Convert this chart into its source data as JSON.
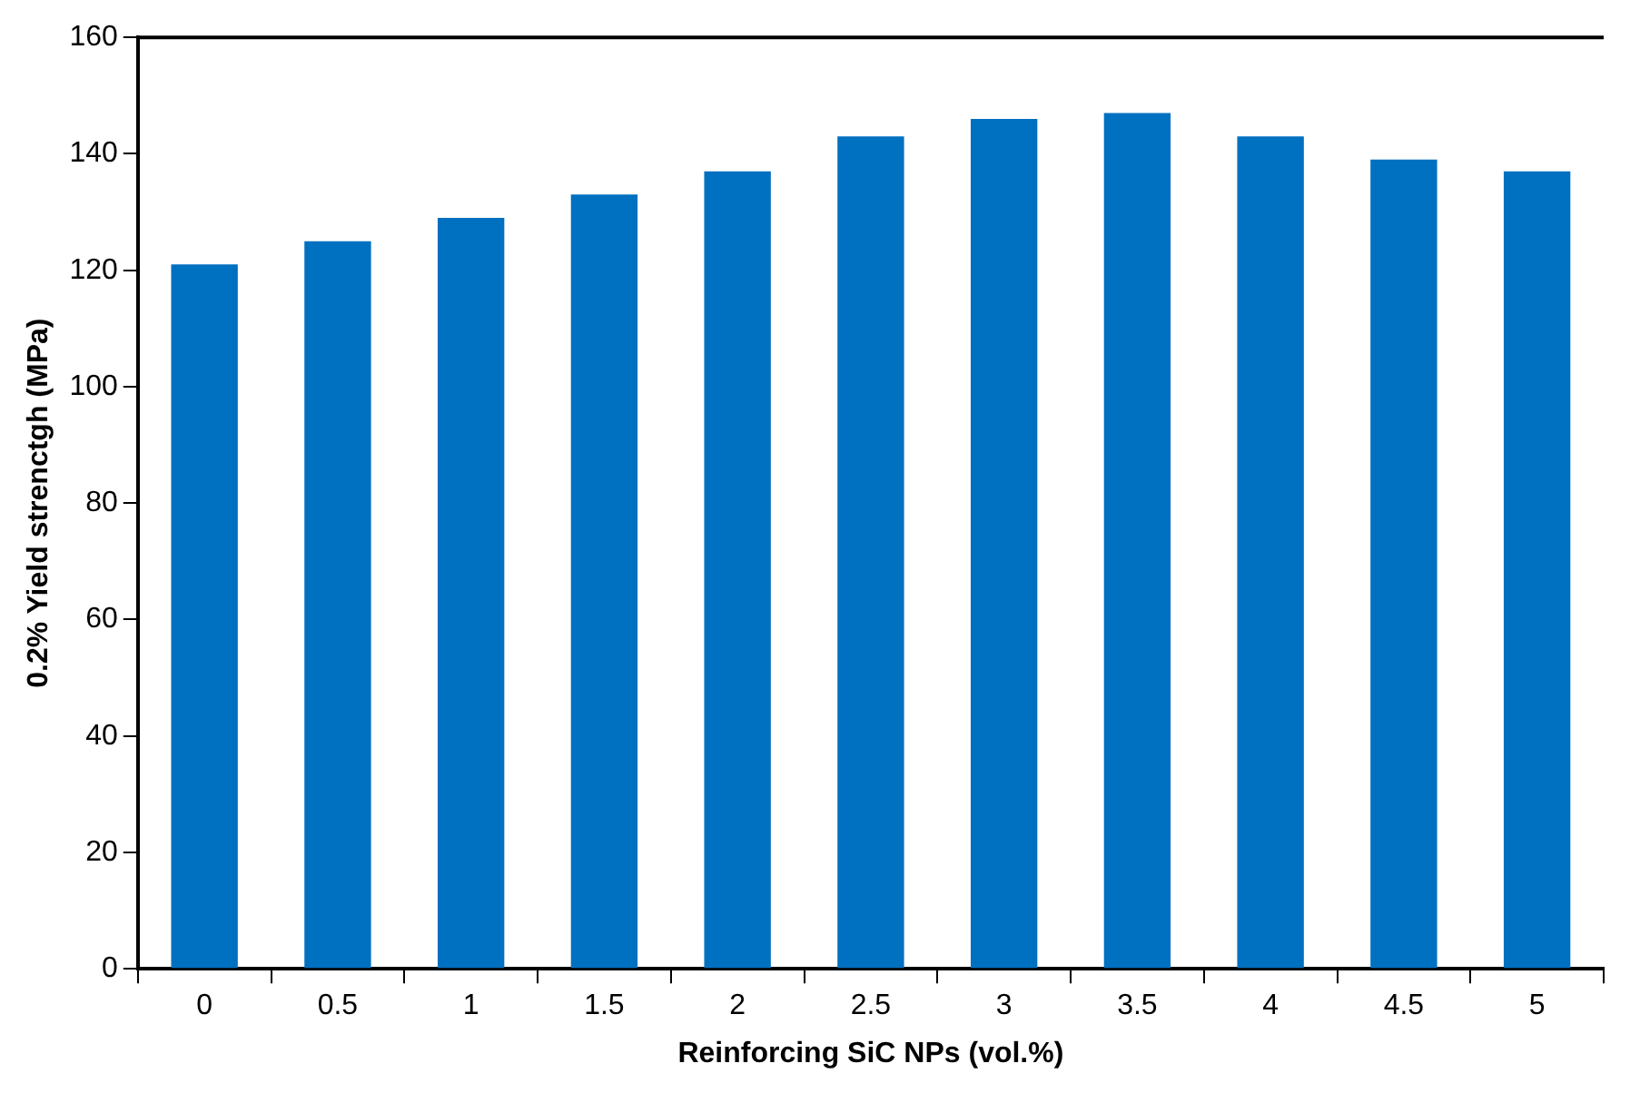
{
  "chart_data": {
    "type": "bar",
    "xlabel": "Reinforcing SiC NPs (vol.%)",
    "ylabel": "0.2% Yield strenctgh (MPa)",
    "categories": [
      "0",
      "0.5",
      "1",
      "1.5",
      "2",
      "2.5",
      "3",
      "3.5",
      "4",
      "4.5",
      "5"
    ],
    "values": [
      121,
      125,
      129,
      133,
      137,
      143,
      146,
      147,
      143,
      139,
      137
    ],
    "color": "#0070c0",
    "ylim": [
      0,
      160
    ],
    "yticks": [
      0,
      20,
      40,
      60,
      80,
      100,
      120,
      140,
      160
    ],
    "grid": false,
    "legend": false
  }
}
